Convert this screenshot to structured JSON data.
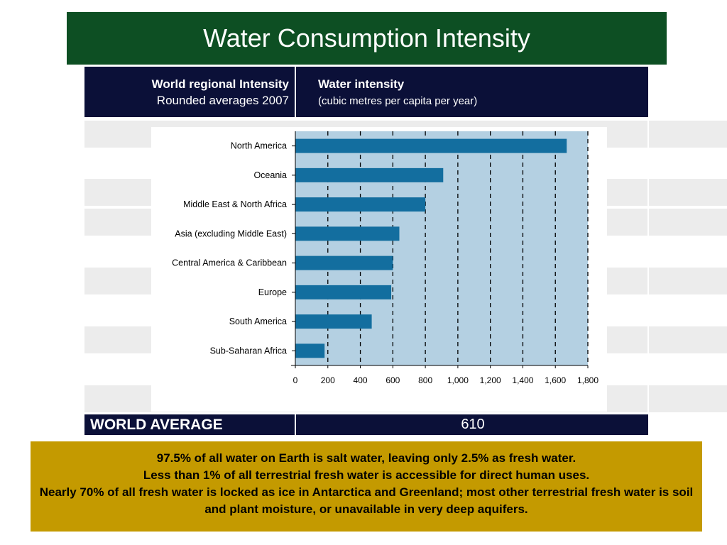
{
  "title": "Water Consumption Intensity",
  "header": {
    "left_line1": "World regional Intensity",
    "left_line2": "Rounded averages  2007",
    "right_line1": "Water intensity",
    "right_line2": "(cubic metres per capita per year)"
  },
  "world_average": {
    "label": "WORLD AVERAGE",
    "value": "610"
  },
  "facts": [
    "97.5% of all water on Earth is salt water, leaving only 2.5% as fresh water.",
    "Less than 1% of all terrestrial fresh water is accessible for direct human uses.",
    "Nearly 70% of all fresh water is locked as ice in Antarctica and Greenland; most other terrestrial fresh water is soil and plant moisture, or unavailable in very deep aquifers."
  ],
  "colors": {
    "title_bar": "#0d4f23",
    "header_bg": "#0b1038",
    "facts_bg": "#c49a00",
    "plot_bg": "#b4d0e2",
    "bar": "#136e9f"
  },
  "chart_data": {
    "type": "bar",
    "orientation": "horizontal",
    "categories": [
      "North America",
      "Oceania",
      "Middle East & North Africa",
      "Asia (excluding Middle East)",
      "Central America & Caribbean",
      "Europe",
      "South America",
      "Sub-Saharan Africa"
    ],
    "values": [
      1670,
      910,
      800,
      640,
      600,
      590,
      470,
      180
    ],
    "xlim": [
      0,
      1800
    ],
    "xticks": [
      "0",
      "200",
      "400",
      "600",
      "800",
      "1,000",
      "1,200",
      "1,400",
      "1,600",
      "1,800"
    ],
    "grid": "vertical dashed",
    "title": "",
    "xlabel": "",
    "ylabel": ""
  }
}
